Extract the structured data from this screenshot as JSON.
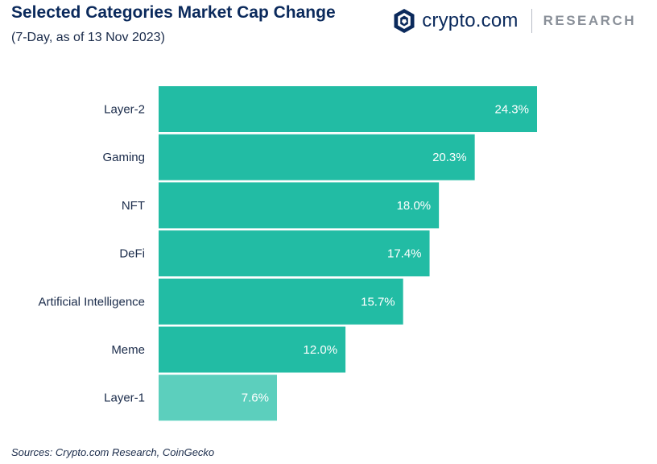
{
  "header": {
    "title": "Selected Categories Market Cap Change",
    "subtitle": "(7-Day, as of 13 Nov 2023)"
  },
  "brand": {
    "logo_icon": "crypto-com-shield-icon",
    "name": "crypto.com",
    "research": "RESEARCH"
  },
  "footer": {
    "source": "Sources: Crypto.com Research, CoinGecko"
  },
  "colors": {
    "bar": "#22bca4",
    "bar_highlight": "#5ccfbd",
    "brand_navy": "#0b2a5c"
  },
  "chart_data": {
    "type": "bar",
    "orientation": "horizontal",
    "title": "Selected Categories Market Cap Change",
    "subtitle": "(7-Day, as of 13 Nov 2023)",
    "xlabel": "",
    "ylabel": "",
    "categories": [
      "Layer-2",
      "Gaming",
      "NFT",
      "DeFi",
      "Artificial Intelligence",
      "Meme",
      "Layer-1"
    ],
    "values": [
      24.3,
      20.3,
      18.0,
      17.4,
      15.7,
      12.0,
      7.6
    ],
    "value_labels": [
      "24.3%",
      "20.3%",
      "18.0%",
      "17.4%",
      "15.7%",
      "12.0%",
      "7.6%"
    ],
    "unit": "%",
    "xlim": [
      0,
      24.3
    ],
    "grid": false,
    "legend": "none",
    "highlight_category": "Layer-1"
  }
}
